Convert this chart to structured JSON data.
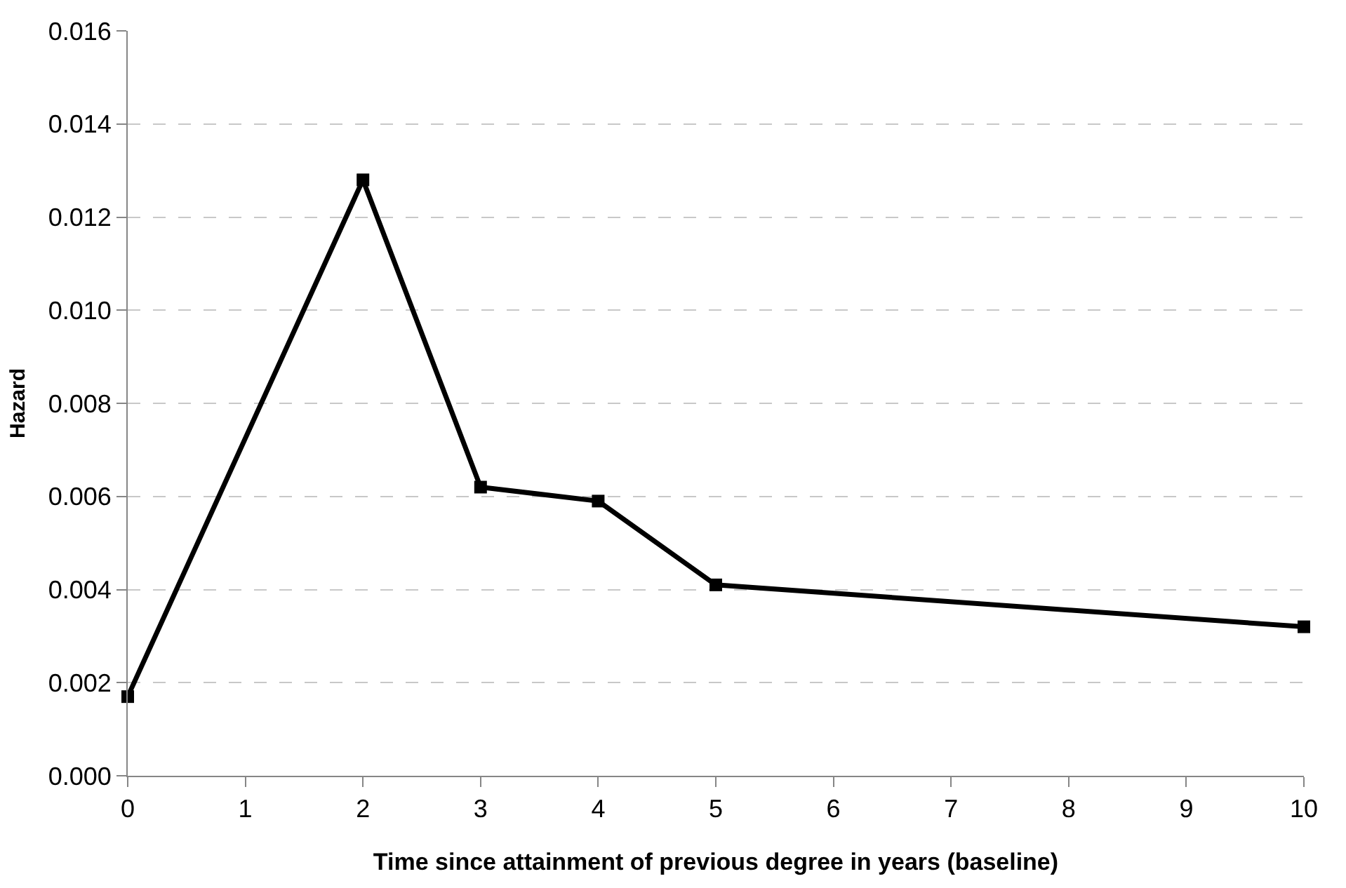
{
  "chart_data": {
    "type": "line",
    "xlabel": "Time since attainment of previous degree in years (baseline)",
    "ylabel": "Hazard",
    "x": [
      0,
      2,
      3,
      4,
      5,
      10
    ],
    "series": [
      {
        "color": "#000000",
        "values": [
          0.0017,
          0.0128,
          0.0062,
          0.0059,
          0.0041,
          0.0032
        ]
      }
    ],
    "xlim": [
      0,
      10
    ],
    "xticks": [
      0,
      1,
      2,
      3,
      4,
      5,
      6,
      7,
      8,
      9,
      10
    ],
    "ylim": [
      0,
      0.016
    ],
    "yticks": [
      {
        "value": 0,
        "label": "0.000"
      },
      {
        "value": 0.002,
        "label": "0.002"
      },
      {
        "value": 0.004,
        "label": "0.004"
      },
      {
        "value": 0.006,
        "label": "0.006"
      },
      {
        "value": 0.008,
        "label": "0.008"
      },
      {
        "value": 0.01,
        "label": "0.010"
      },
      {
        "value": 0.012,
        "label": "0.012"
      },
      {
        "value": 0.014,
        "label": "0.014"
      },
      {
        "value": 0.016,
        "label": "0.016"
      }
    ],
    "grid": "y",
    "marker": "square",
    "line_style": "solid"
  }
}
